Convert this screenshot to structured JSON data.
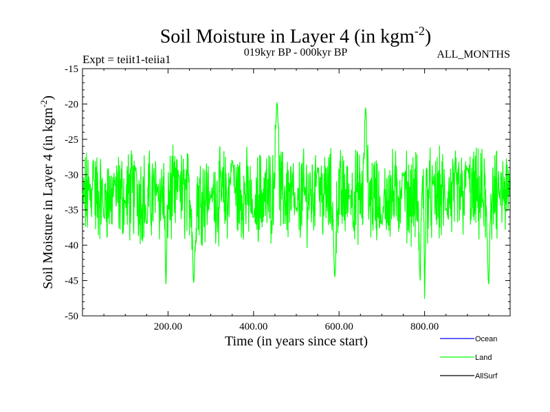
{
  "chart_data": {
    "type": "line",
    "title": "Soil Moisture in Layer 4 (in kgm",
    "title_sup": "-2",
    "title_end": ")",
    "subtitle": "019kyr BP - 000kyr BP",
    "expt_label": "Expt = teiit1-teiia1",
    "months_label": "ALL_MONTHS",
    "xlabel": "Time (in years since start)",
    "ylabel": "Soil Moisture in Layer 4 (in kgm",
    "ylabel_sup": "-2",
    "ylabel_end": ")",
    "xlim": [
      0,
      1000
    ],
    "ylim": [
      -50,
      -15
    ],
    "x_tick_values": [
      200,
      400,
      600,
      800
    ],
    "x_tick_labels": [
      "200.00",
      "400.00",
      "600.00",
      "800.00"
    ],
    "y_tick_values": [
      -15,
      -20,
      -25,
      -30,
      -35,
      -40,
      -45,
      -50
    ],
    "y_tick_labels": [
      "-15",
      "-20",
      "-25",
      "-30",
      "-35",
      "-40",
      "-45",
      "-50"
    ],
    "legend_position": "bottom-right, below plot",
    "series": [
      {
        "name": "Ocean",
        "color": "#0000ff",
        "values": []
      },
      {
        "name": "Land",
        "color": "#00ff00",
        "approximate": true,
        "summary": {
          "mean": -33,
          "min": -47.6,
          "max": -19.8
        },
        "x": [
          0,
          25,
          50,
          75,
          100,
          125,
          150,
          175,
          195,
          225,
          260,
          300,
          350,
          400,
          455,
          500,
          550,
          590,
          625,
          662,
          700,
          750,
          790,
          800,
          820,
          850,
          900,
          950,
          975,
          1000
        ],
        "values": [
          -33,
          -28,
          -36,
          -31,
          -34,
          -29,
          -37,
          -32,
          -45.5,
          -30,
          -45.3,
          -33,
          -28,
          -36,
          -19.8,
          -35,
          -29,
          -44.5,
          -33,
          -20.5,
          -37,
          -30,
          -45,
          -47.6,
          -31,
          -35,
          -29,
          -45.5,
          -33,
          -30
        ]
      },
      {
        "name": "AllSurf",
        "color": "#000000",
        "values": []
      }
    ]
  }
}
